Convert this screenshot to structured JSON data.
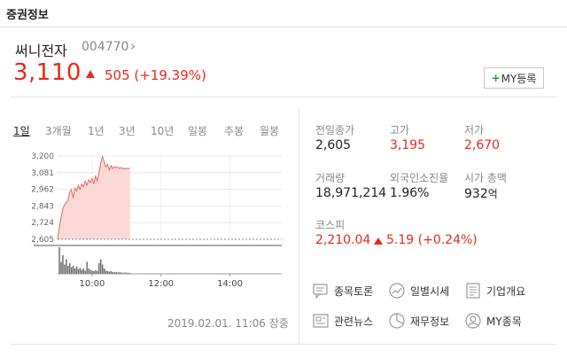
{
  "section": {
    "title": "증권정보"
  },
  "stock": {
    "name": "써니전자",
    "code": "004770",
    "price": "3,110",
    "change": "505 (+19.39%)",
    "my_button": "MY등록"
  },
  "tabs": [
    "1일",
    "3개월",
    "1년",
    "3년",
    "10년",
    "일봉",
    "주봉",
    "월봉"
  ],
  "active_tab": "1일",
  "timestamp": "2019.02.01. 11:06 장중",
  "stats": {
    "prev_close_label": "전일종가",
    "prev_close": "2,605",
    "high_label": "고가",
    "high": "3,195",
    "low_label": "저가",
    "low": "2,670",
    "volume_label": "거래량",
    "volume": "18,971,214",
    "foreign_label": "외국인소진율",
    "foreign": "1.96%",
    "mktcap_label": "시가 총액",
    "mktcap": "932",
    "mktcap_unit": "억"
  },
  "index": {
    "name": "코스피",
    "value": "2,210.04",
    "change": "5.19 (+0.24%)"
  },
  "links": [
    {
      "label": "종목토론",
      "icon": "chat-icon"
    },
    {
      "label": "일별시세",
      "icon": "trend-icon"
    },
    {
      "label": "기업개요",
      "icon": "document-icon"
    },
    {
      "label": "관련뉴스",
      "icon": "news-icon"
    },
    {
      "label": "재무정보",
      "icon": "pie-icon"
    },
    {
      "label": "MY종목",
      "icon": "user-icon"
    }
  ],
  "colors": {
    "up": "#e8281c",
    "plus_green": "#2e9e3e",
    "muted": "#888888"
  },
  "chart_data": {
    "type": "area",
    "y_ticks": [
      "3,200",
      "3,081",
      "2,962",
      "2,843",
      "2,724",
      "2,605"
    ],
    "x_ticks": [
      "10:00",
      "12:00",
      "14:00"
    ],
    "ylim": [
      2605,
      3200
    ],
    "baseline": 2605,
    "price_series": [
      [
        "09:00",
        2605
      ],
      [
        "09:03",
        2680
      ],
      [
        "09:06",
        2760
      ],
      [
        "09:09",
        2820
      ],
      [
        "09:12",
        2850
      ],
      [
        "09:15",
        2870
      ],
      [
        "09:18",
        2880
      ],
      [
        "09:21",
        2940
      ],
      [
        "09:24",
        2960
      ],
      [
        "09:27",
        2900
      ],
      [
        "09:30",
        2970
      ],
      [
        "09:33",
        2950
      ],
      [
        "09:36",
        2990
      ],
      [
        "09:39",
        2960
      ],
      [
        "09:42",
        3000
      ],
      [
        "09:45",
        2980
      ],
      [
        "09:48",
        3020
      ],
      [
        "09:51",
        2990
      ],
      [
        "09:54",
        3030
      ],
      [
        "09:57",
        3010
      ],
      [
        "10:00",
        3040
      ],
      [
        "10:03",
        3000
      ],
      [
        "10:06",
        3060
      ],
      [
        "10:09",
        3020
      ],
      [
        "10:12",
        3080
      ],
      [
        "10:15",
        3150
      ],
      [
        "10:18",
        3195
      ],
      [
        "10:21",
        3160
      ],
      [
        "10:24",
        3120
      ],
      [
        "10:27",
        3140
      ],
      [
        "10:30",
        3100
      ],
      [
        "10:33",
        3130
      ],
      [
        "10:36",
        3110
      ],
      [
        "10:39",
        3125
      ],
      [
        "10:42",
        3115
      ],
      [
        "10:45",
        3120
      ],
      [
        "10:48",
        3110
      ],
      [
        "10:51",
        3118
      ],
      [
        "10:54",
        3108
      ],
      [
        "10:57",
        3112
      ],
      [
        "11:00",
        3110
      ],
      [
        "11:03",
        3112
      ],
      [
        "11:06",
        3110
      ]
    ],
    "volume_series": [
      [
        "09:03",
        1.0
      ],
      [
        "09:06",
        0.45
      ],
      [
        "09:09",
        0.7
      ],
      [
        "09:12",
        0.35
      ],
      [
        "09:15",
        0.55
      ],
      [
        "09:18",
        0.3
      ],
      [
        "09:21",
        0.4
      ],
      [
        "09:24",
        0.25
      ],
      [
        "09:27",
        0.3
      ],
      [
        "09:30",
        0.2
      ],
      [
        "09:33",
        0.28
      ],
      [
        "09:36",
        0.18
      ],
      [
        "09:39",
        0.22
      ],
      [
        "09:42",
        0.15
      ],
      [
        "09:45",
        0.2
      ],
      [
        "09:48",
        0.12
      ],
      [
        "09:51",
        0.45
      ],
      [
        "09:54",
        0.2
      ],
      [
        "09:57",
        0.15
      ],
      [
        "10:00",
        0.12
      ],
      [
        "10:03",
        0.1
      ],
      [
        "10:06",
        0.14
      ],
      [
        "10:09",
        0.1
      ],
      [
        "10:12",
        0.4
      ],
      [
        "10:15",
        0.55
      ],
      [
        "10:18",
        0.35
      ],
      [
        "10:21",
        0.2
      ],
      [
        "10:24",
        0.12
      ],
      [
        "10:27",
        0.1
      ],
      [
        "10:30",
        0.08
      ],
      [
        "10:33",
        0.1
      ],
      [
        "10:36",
        0.07
      ],
      [
        "10:39",
        0.06
      ],
      [
        "10:42",
        0.07
      ],
      [
        "10:45",
        0.05
      ],
      [
        "10:48",
        0.06
      ],
      [
        "10:51",
        0.05
      ],
      [
        "10:54",
        0.04
      ],
      [
        "10:57",
        0.05
      ],
      [
        "11:00",
        0.04
      ],
      [
        "11:03",
        0.04
      ],
      [
        "11:06",
        0.03
      ]
    ]
  }
}
